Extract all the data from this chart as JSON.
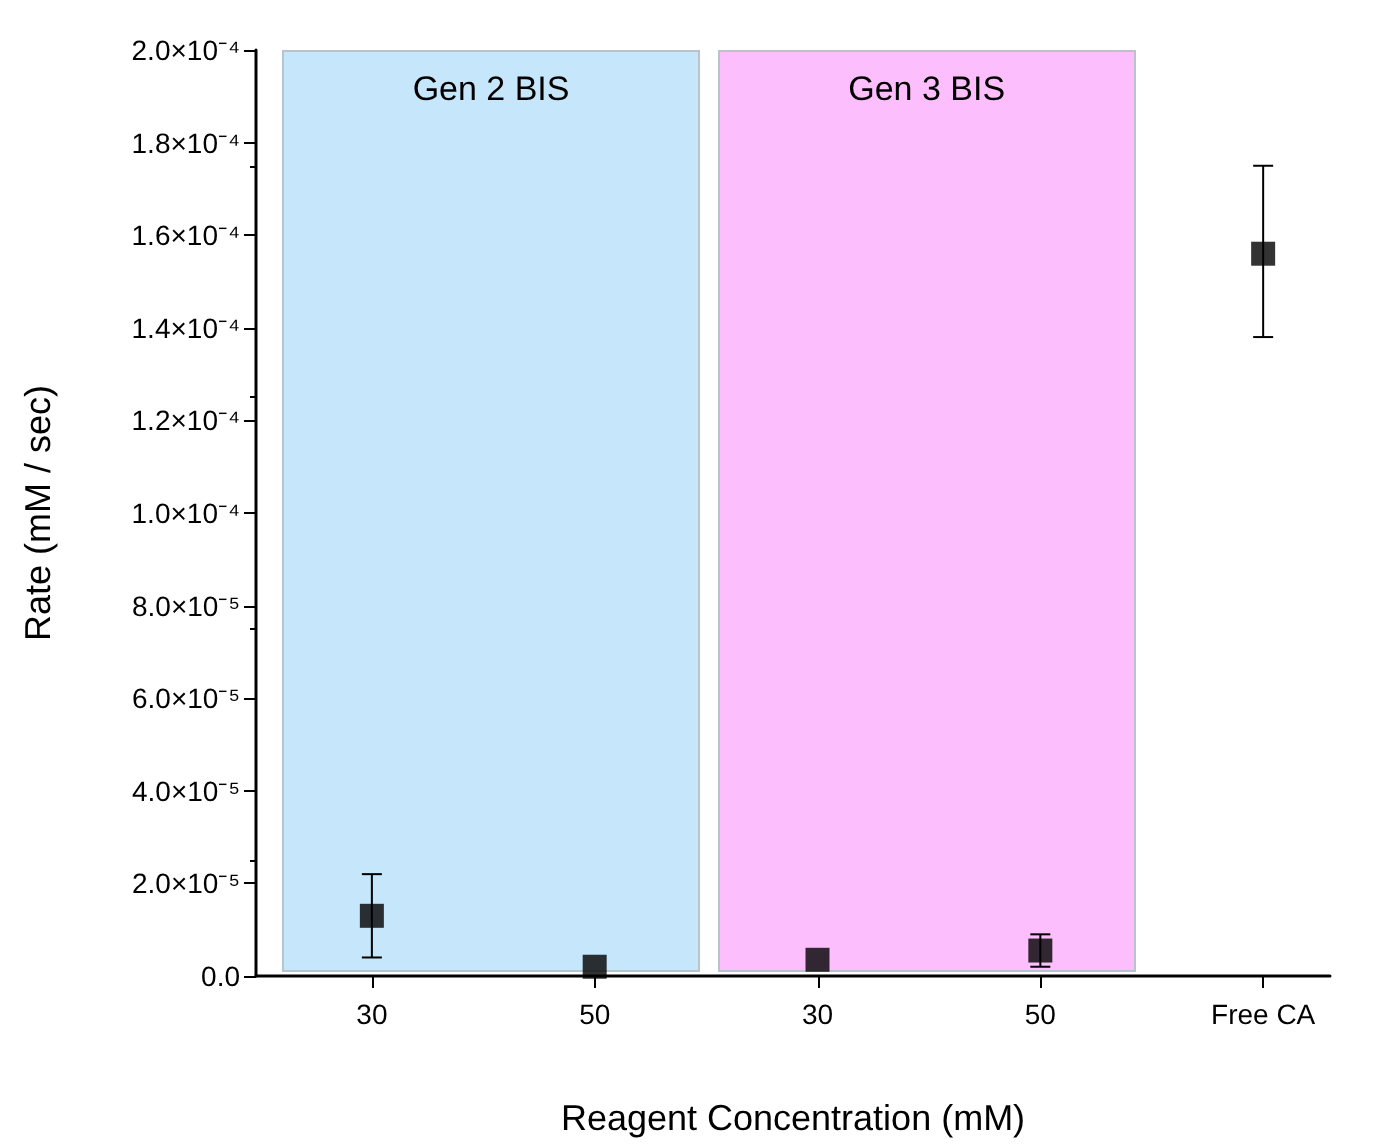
{
  "chart_data": {
    "type": "scatter",
    "xlabel": "Reagent Concentration (mM)",
    "ylabel": "Rate (mM / sec)",
    "categories": [
      "30",
      "50",
      "30",
      "50",
      "Free CA"
    ],
    "series": [
      {
        "color": "#000000",
        "values": [
          1.3e-05,
          2e-06,
          3.5e-06,
          5.5e-06,
          0.000156
        ],
        "errors": [
          [
            4e-06,
            2.2e-05
          ],
          null,
          null,
          [
            2e-06,
            9e-06
          ],
          [
            0.000138,
            0.000175
          ]
        ]
      }
    ],
    "ylim": [
      0,
      0.0002
    ],
    "yticks": [
      {
        "value": 0,
        "label": "0.0"
      },
      {
        "value": 2e-05,
        "label": "2.0×10⁻⁵"
      },
      {
        "value": 4e-05,
        "label": "4.0×10⁻⁵"
      },
      {
        "value": 6e-05,
        "label": "6.0×10⁻⁵"
      },
      {
        "value": 8e-05,
        "label": "8.0×10⁻⁵"
      },
      {
        "value": 0.0001,
        "label": "1.0×10⁻⁴"
      },
      {
        "value": 0.00012,
        "label": "1.2×10⁻⁴"
      },
      {
        "value": 0.00014,
        "label": "1.4×10⁻⁴"
      },
      {
        "value": 0.00016,
        "label": "1.6×10⁻⁴"
      },
      {
        "value": 0.00018,
        "label": "1.8×10⁻⁴"
      },
      {
        "value": 0.0002,
        "label": "2.0×10⁻⁴"
      }
    ],
    "annotations": [
      "Gen 2 BIS",
      "Gen 3 BIS"
    ],
    "marker": "square",
    "grid": false
  }
}
